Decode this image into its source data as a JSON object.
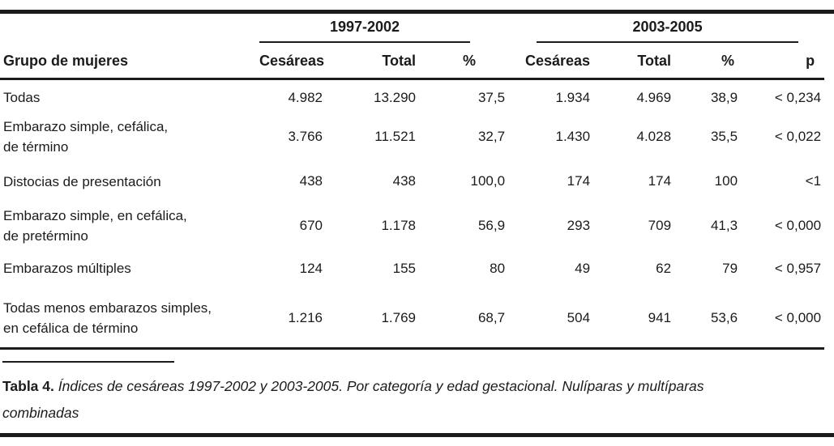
{
  "colors": {
    "text": "#1b1b1b",
    "rule": "#1b1b1b",
    "background": "#ffffff"
  },
  "table": {
    "group_headers": [
      "1997-2002",
      "2003-2005"
    ],
    "col_headers": [
      "Grupo de mujeres",
      "Cesáreas",
      "Total",
      "%",
      "Cesáreas",
      "Total",
      "%",
      "p"
    ],
    "rows": [
      {
        "label": "Todas",
        "c1": "4.982",
        "t1": "13.290",
        "pct1": "37,5",
        "c2": "1.934",
        "t2": "4.969",
        "pct2": "38,9",
        "p": "< 0,234"
      },
      {
        "label": "Embarazo simple, cefálica,\nde término",
        "c1": "3.766",
        "t1": "11.521",
        "pct1": "32,7",
        "c2": "1.430",
        "t2": "4.028",
        "pct2": "35,5",
        "p": "< 0,022"
      },
      {
        "label": "Distocias de presentación",
        "c1": "438",
        "t1": "438",
        "pct1": "100,0",
        "c2": "174",
        "t2": "174",
        "pct2": "100",
        "p": "<1"
      },
      {
        "label": "Embarazo simple,  en cefálica,\nde pretérmino",
        "c1": "670",
        "t1": "1.178",
        "pct1": "56,9",
        "c2": "293",
        "t2": "709",
        "pct2": "41,3",
        "p": "< 0,000"
      },
      {
        "label": "Embarazos múltiples",
        "c1": "124",
        "t1": "155",
        "pct1": "80",
        "c2": "49",
        "t2": "62",
        "pct2": "79",
        "p": "< 0,957"
      },
      {
        "label": "Todas menos embarazos simples,\nen cefálica de término",
        "c1": "1.216",
        "t1": "1.769",
        "pct1": "68,7",
        "c2": "504",
        "t2": "941",
        "pct2": "53,6",
        "p": "< 0,000"
      }
    ]
  },
  "caption": {
    "label": "Tabla 4.",
    "text": " Índices de cesáreas 1997-2002 y 2003-2005. Por categoría y edad gestacional. Nulíparas y multíparas\ncombinadas"
  }
}
